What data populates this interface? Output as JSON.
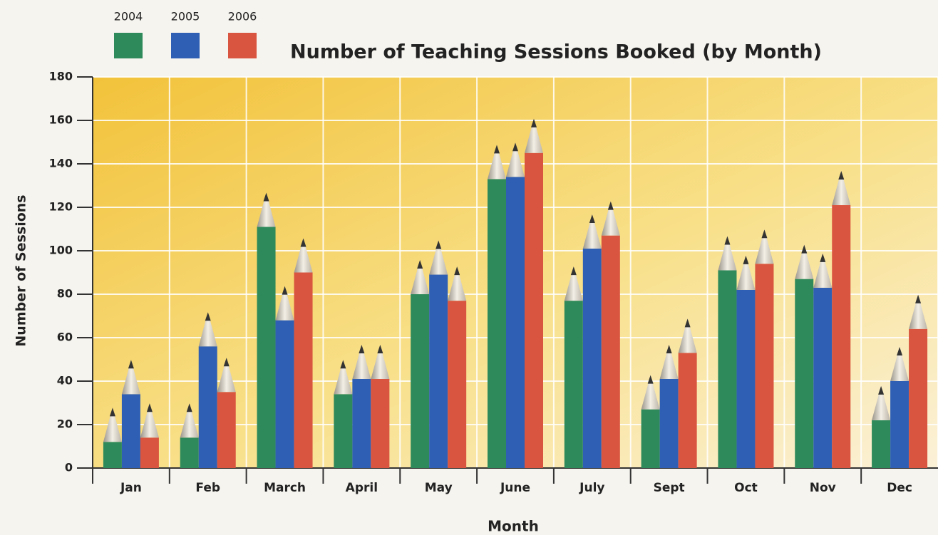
{
  "chart_data": {
    "type": "bar",
    "title": "Number of Teaching Sessions Booked (by Month)",
    "x_label": "Month",
    "y_label": "Number of Sessions",
    "categories": [
      "Jan",
      "Feb",
      "March",
      "April",
      "May",
      "June",
      "July",
      "Sept",
      "Oct",
      "Nov",
      "Dec"
    ],
    "series": [
      {
        "name": "2004",
        "color": "#2e8a5a",
        "values": [
          12,
          14,
          111,
          34,
          80,
          133,
          77,
          27,
          91,
          87,
          22
        ]
      },
      {
        "name": "2005",
        "color": "#2f5fb5",
        "values": [
          34,
          56,
          68,
          41,
          89,
          134,
          101,
          41,
          82,
          83,
          40
        ]
      },
      {
        "name": "2006",
        "color": "#d9553f",
        "values": [
          14,
          35,
          90,
          41,
          77,
          145,
          107,
          53,
          94,
          121,
          64
        ]
      }
    ],
    "ylim": [
      0,
      180
    ],
    "yticks": [
      0,
      20,
      40,
      60,
      80,
      100,
      120,
      140,
      160,
      180
    ],
    "grid": true
  }
}
